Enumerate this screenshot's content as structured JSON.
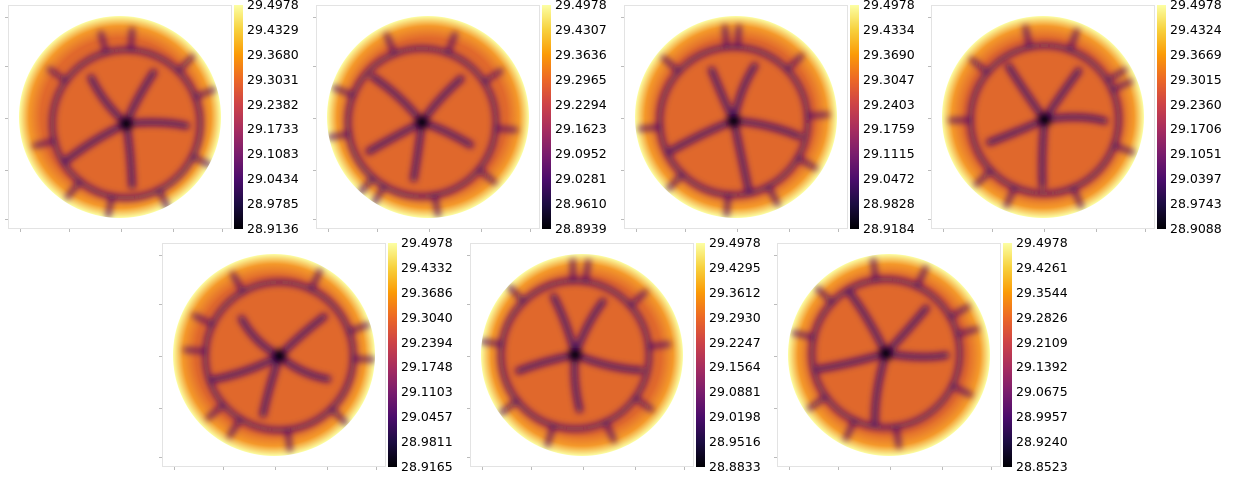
{
  "colormap": "inferno",
  "colors": {
    "low": "#000004",
    "cell_ridge": "#4a0c6b",
    "cell_body": "#e0682c",
    "rim": "#fcffa4"
  },
  "chart_data": [
    {
      "type": "heatmap",
      "colorbar_range": [
        28.9136,
        29.4978
      ],
      "colorbar_ticks": [
        "29.4978",
        "29.4329",
        "29.3680",
        "29.3031",
        "29.2382",
        "29.1733",
        "29.1083",
        "29.0434",
        "28.9785",
        "28.9136"
      ]
    },
    {
      "type": "heatmap",
      "colorbar_range": [
        28.8939,
        29.4978
      ],
      "colorbar_ticks": [
        "29.4978",
        "29.4307",
        "29.3636",
        "29.2965",
        "29.2294",
        "29.1623",
        "29.0952",
        "29.0281",
        "28.9610",
        "28.8939"
      ]
    },
    {
      "type": "heatmap",
      "colorbar_range": [
        28.9184,
        29.4978
      ],
      "colorbar_ticks": [
        "29.4978",
        "29.4334",
        "29.3690",
        "29.3047",
        "29.2403",
        "29.1759",
        "29.1115",
        "29.0472",
        "28.9828",
        "28.9184"
      ]
    },
    {
      "type": "heatmap",
      "colorbar_range": [
        28.9088,
        29.4978
      ],
      "colorbar_ticks": [
        "29.4978",
        "29.4324",
        "29.3669",
        "29.3015",
        "29.2360",
        "29.1706",
        "29.1051",
        "29.0397",
        "28.9743",
        "28.9088"
      ]
    },
    {
      "type": "heatmap",
      "colorbar_range": [
        28.9165,
        29.4978
      ],
      "colorbar_ticks": [
        "29.4978",
        "29.4332",
        "29.3686",
        "29.3040",
        "29.2394",
        "29.1748",
        "29.1103",
        "29.0457",
        "28.9811",
        "28.9165"
      ]
    },
    {
      "type": "heatmap",
      "colorbar_range": [
        28.8833,
        29.4978
      ],
      "colorbar_ticks": [
        "29.4978",
        "29.4295",
        "29.3612",
        "29.2930",
        "29.2247",
        "29.1564",
        "29.0881",
        "29.0198",
        "28.9516",
        "28.8833"
      ]
    },
    {
      "type": "heatmap",
      "colorbar_range": [
        28.8523,
        29.4978
      ],
      "colorbar_ticks": [
        "29.4978",
        "29.4261",
        "29.3544",
        "29.2826",
        "29.2109",
        "29.1392",
        "29.0675",
        "28.9957",
        "28.9240",
        "28.8523"
      ]
    }
  ]
}
